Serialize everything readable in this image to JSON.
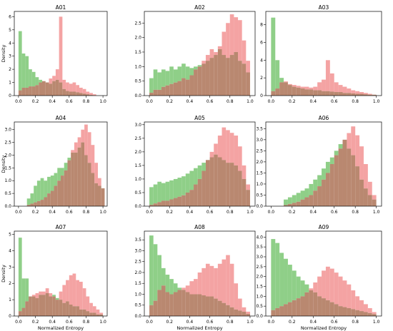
{
  "figure": {
    "x_axis_label": "Normalized Entropy",
    "y_axis_label": "Density",
    "colors": {
      "green": "#8fcf88",
      "red": "#f4a3a3",
      "overlap": "#b98870"
    }
  },
  "chart_data": [
    {
      "type": "bar",
      "title": "A01",
      "xlim": [
        -0.05,
        1.05
      ],
      "ylim": [
        0,
        6.4
      ],
      "x_ticks": [
        "0.0",
        "0.2",
        "0.4",
        "0.6",
        "0.8",
        "1.0"
      ],
      "y_ticks": [
        "0",
        "1",
        "2",
        "3",
        "4",
        "5",
        "6"
      ],
      "bins": [
        0.0,
        0.04,
        0.08,
        0.12,
        0.16,
        0.2,
        0.24,
        0.28,
        0.32,
        0.36,
        0.4,
        0.44,
        0.48,
        0.52,
        0.56,
        0.6,
        0.64,
        0.68,
        0.72,
        0.76,
        0.8,
        0.84,
        0.88,
        0.92,
        0.96
      ],
      "bin_width": 0.04,
      "series": [
        {
          "color": "green",
          "values": [
            4.9,
            3.2,
            3.0,
            2.0,
            1.8,
            1.4,
            1.2,
            1.1,
            1.0,
            0.9,
            1.1,
            1.2,
            1.0,
            0.5,
            0.35,
            0.3,
            0.3,
            0.25,
            0.2,
            0.15,
            0.1,
            0.05,
            0.02,
            0.0,
            0.0
          ]
        },
        {
          "color": "red",
          "values": [
            0.4,
            0.6,
            0.6,
            0.7,
            0.7,
            0.8,
            1.0,
            1.1,
            1.0,
            1.3,
            1.5,
            2.0,
            6.0,
            1.2,
            1.0,
            0.9,
            1.0,
            0.8,
            0.6,
            0.5,
            0.3,
            0.2,
            0.1,
            0.0,
            0.0
          ]
        }
      ]
    },
    {
      "type": "bar",
      "title": "A02",
      "xlim": [
        -0.05,
        1.05
      ],
      "ylim": [
        0,
        2.9
      ],
      "x_ticks": [
        "0.0",
        "0.2",
        "0.4",
        "0.6",
        "0.8",
        "1.0"
      ],
      "y_ticks": [
        "0.0",
        "0.5",
        "1.0",
        "1.5",
        "2.0",
        "2.5"
      ],
      "bins": [
        0.0,
        0.04,
        0.08,
        0.12,
        0.16,
        0.2,
        0.24,
        0.28,
        0.32,
        0.36,
        0.4,
        0.44,
        0.48,
        0.52,
        0.56,
        0.6,
        0.64,
        0.68,
        0.72,
        0.76,
        0.8,
        0.84,
        0.88,
        0.92,
        0.96
      ],
      "bin_width": 0.04,
      "series": [
        {
          "color": "green",
          "values": [
            0.6,
            0.9,
            0.8,
            0.9,
            0.85,
            1.0,
            0.9,
            1.0,
            1.1,
            1.0,
            0.95,
            1.0,
            1.05,
            1.1,
            1.2,
            1.3,
            1.4,
            1.6,
            1.4,
            1.3,
            1.4,
            1.5,
            1.2,
            1.1,
            0.8
          ]
        },
        {
          "color": "red",
          "values": [
            0.1,
            0.2,
            0.2,
            0.3,
            0.35,
            0.4,
            0.45,
            0.5,
            0.6,
            0.55,
            0.7,
            0.9,
            1.0,
            1.2,
            1.4,
            1.6,
            1.5,
            1.7,
            2.2,
            2.5,
            2.8,
            2.7,
            2.6,
            1.9,
            1.2
          ]
        }
      ]
    },
    {
      "type": "bar",
      "title": "A03",
      "xlim": [
        -0.05,
        1.05
      ],
      "ylim": [
        0,
        9.5
      ],
      "x_ticks": [
        "0.0",
        "0.2",
        "0.4",
        "0.6",
        "0.8",
        "1.0"
      ],
      "y_ticks": [
        "0",
        "2",
        "4",
        "6",
        "8"
      ],
      "bins": [
        0.0,
        0.04,
        0.08,
        0.12,
        0.16,
        0.2,
        0.24,
        0.28,
        0.32,
        0.36,
        0.4,
        0.44,
        0.48,
        0.52,
        0.56,
        0.6,
        0.64,
        0.68,
        0.72,
        0.76,
        0.8,
        0.84,
        0.88,
        0.92,
        0.96
      ],
      "bin_width": 0.04,
      "series": [
        {
          "color": "green",
          "values": [
            8.8,
            4.0,
            2.0,
            1.5,
            1.2,
            1.0,
            0.9,
            0.8,
            0.7,
            0.7,
            0.6,
            0.6,
            0.5,
            0.5,
            0.45,
            0.4,
            0.4,
            0.3,
            0.3,
            0.25,
            0.2,
            0.2,
            0.15,
            0.1,
            0.1
          ]
        },
        {
          "color": "red",
          "values": [
            0.5,
            0.8,
            1.5,
            1.6,
            1.3,
            1.2,
            1.1,
            1.0,
            1.0,
            0.9,
            1.0,
            1.5,
            1.8,
            4.0,
            2.5,
            1.5,
            1.2,
            1.0,
            0.8,
            0.6,
            0.5,
            0.4,
            0.3,
            0.2,
            0.1
          ]
        }
      ]
    },
    {
      "type": "bar",
      "title": "A04",
      "xlim": [
        -0.05,
        1.05
      ],
      "ylim": [
        0,
        3.3
      ],
      "x_ticks": [
        "0.0",
        "0.2",
        "0.4",
        "0.6",
        "0.8",
        "1.0"
      ],
      "y_ticks": [
        "0.0",
        "0.5",
        "1.0",
        "1.5",
        "2.0",
        "2.5",
        "3.0"
      ],
      "bins": [
        0.1,
        0.14,
        0.18,
        0.22,
        0.26,
        0.3,
        0.34,
        0.38,
        0.42,
        0.46,
        0.5,
        0.54,
        0.58,
        0.62,
        0.66,
        0.7,
        0.74,
        0.78,
        0.82,
        0.86,
        0.9,
        0.94,
        0.98
      ],
      "bin_width": 0.04,
      "series": [
        {
          "color": "green",
          "values": [
            0.3,
            0.5,
            0.8,
            1.0,
            1.1,
            1.0,
            1.15,
            1.2,
            1.3,
            1.5,
            1.5,
            1.7,
            1.9,
            2.1,
            2.1,
            2.3,
            2.5,
            2.0,
            1.7,
            1.3,
            0.9,
            0.8,
            0.7
          ]
        },
        {
          "color": "red",
          "values": [
            0.05,
            0.1,
            0.15,
            0.2,
            0.25,
            0.35,
            0.5,
            0.6,
            0.8,
            1.0,
            1.2,
            1.4,
            1.8,
            2.2,
            2.5,
            2.7,
            3.0,
            3.2,
            2.9,
            2.4,
            1.7,
            1.1,
            0.7
          ]
        }
      ]
    },
    {
      "type": "bar",
      "title": "A05",
      "xlim": [
        -0.05,
        1.05
      ],
      "ylim": [
        0,
        3.1
      ],
      "x_ticks": [
        "0.0",
        "0.2",
        "0.4",
        "0.6",
        "0.8",
        "1.0"
      ],
      "y_ticks": [
        "0.0",
        "0.5",
        "1.0",
        "1.5",
        "2.0",
        "2.5",
        "3.0"
      ],
      "bins": [
        0.0,
        0.04,
        0.08,
        0.12,
        0.16,
        0.2,
        0.24,
        0.28,
        0.32,
        0.36,
        0.4,
        0.44,
        0.48,
        0.52,
        0.56,
        0.6,
        0.64,
        0.68,
        0.72,
        0.76,
        0.8,
        0.84,
        0.88,
        0.92,
        0.96
      ],
      "bin_width": 0.04,
      "series": [
        {
          "color": "green",
          "values": [
            0.7,
            0.8,
            0.9,
            0.85,
            0.9,
            0.95,
            1.0,
            1.05,
            1.1,
            1.2,
            1.3,
            1.4,
            1.5,
            1.6,
            1.7,
            1.8,
            1.9,
            1.8,
            1.7,
            1.6,
            1.6,
            1.5,
            1.3,
            1.0,
            0.6
          ]
        },
        {
          "color": "red",
          "values": [
            0.05,
            0.1,
            0.15,
            0.2,
            0.2,
            0.25,
            0.3,
            0.35,
            0.4,
            0.5,
            0.6,
            0.8,
            1.0,
            1.3,
            1.7,
            2.0,
            2.3,
            2.6,
            2.9,
            2.8,
            2.7,
            2.6,
            2.2,
            1.5,
            0.8
          ]
        }
      ]
    },
    {
      "type": "bar",
      "title": "A06",
      "xlim": [
        -0.05,
        1.05
      ],
      "ylim": [
        0,
        3.8
      ],
      "x_ticks": [
        "0.0",
        "0.2",
        "0.4",
        "0.6",
        "0.8",
        "1.0"
      ],
      "y_ticks": [
        "0.0",
        "0.5",
        "1.0",
        "1.5",
        "2.0",
        "2.5",
        "3.0",
        "3.5"
      ],
      "bins": [
        0.12,
        0.16,
        0.2,
        0.24,
        0.28,
        0.32,
        0.36,
        0.4,
        0.44,
        0.48,
        0.52,
        0.56,
        0.6,
        0.64,
        0.68,
        0.72,
        0.76,
        0.8,
        0.84,
        0.88,
        0.92,
        0.96
      ],
      "bin_width": 0.04,
      "series": [
        {
          "color": "green",
          "values": [
            0.3,
            0.4,
            0.5,
            0.6,
            0.7,
            0.8,
            1.0,
            1.2,
            1.4,
            1.7,
            2.0,
            2.2,
            2.5,
            2.8,
            3.0,
            2.6,
            2.3,
            1.8,
            1.2,
            0.8,
            0.5,
            0.3
          ]
        },
        {
          "color": "red",
          "values": [
            0.05,
            0.1,
            0.15,
            0.2,
            0.3,
            0.4,
            0.5,
            0.7,
            0.9,
            1.2,
            1.5,
            1.9,
            2.3,
            2.6,
            3.0,
            3.3,
            3.6,
            3.2,
            2.7,
            1.9,
            1.1,
            0.5
          ]
        }
      ]
    },
    {
      "type": "bar",
      "title": "A07",
      "xlim": [
        -0.05,
        1.05
      ],
      "ylim": [
        0,
        5.2
      ],
      "x_ticks": [
        "0.0",
        "0.2",
        "0.4",
        "0.6",
        "0.8",
        "1.0"
      ],
      "y_ticks": [
        "0",
        "1",
        "2",
        "3",
        "4",
        "5"
      ],
      "bins": [
        0.0,
        0.04,
        0.08,
        0.12,
        0.16,
        0.2,
        0.24,
        0.28,
        0.32,
        0.36,
        0.4,
        0.44,
        0.48,
        0.52,
        0.56,
        0.6,
        0.64,
        0.68,
        0.72,
        0.76,
        0.8,
        0.84,
        0.88,
        0.92,
        0.96
      ],
      "bin_width": 0.04,
      "series": [
        {
          "color": "green",
          "values": [
            4.8,
            2.3,
            2.3,
            1.2,
            1.2,
            1.1,
            1.3,
            1.3,
            1.4,
            1.2,
            1.3,
            1.1,
            1.0,
            0.8,
            0.9,
            0.7,
            0.6,
            0.6,
            0.4,
            0.4,
            0.3,
            0.2,
            0.2,
            0.1,
            0.1
          ]
        },
        {
          "color": "red",
          "values": [
            0.3,
            0.5,
            0.9,
            1.2,
            1.3,
            1.4,
            1.5,
            1.5,
            1.7,
            1.4,
            1.2,
            1.0,
            1.5,
            1.9,
            2.2,
            2.5,
            2.6,
            2.2,
            2.1,
            1.7,
            1.2,
            0.8,
            0.6,
            0.4,
            0.2
          ]
        }
      ]
    },
    {
      "type": "bar",
      "title": "A08",
      "xlim": [
        -0.05,
        1.05
      ],
      "ylim": [
        0,
        3.9
      ],
      "x_ticks": [
        "0.0",
        "0.2",
        "0.4",
        "0.6",
        "0.8",
        "1.0"
      ],
      "y_ticks": [
        "0.0",
        "0.5",
        "1.0",
        "1.5",
        "2.0",
        "2.5",
        "3.0",
        "3.5"
      ],
      "bins": [
        0.0,
        0.04,
        0.08,
        0.12,
        0.16,
        0.2,
        0.24,
        0.28,
        0.32,
        0.36,
        0.4,
        0.44,
        0.48,
        0.52,
        0.56,
        0.6,
        0.64,
        0.68,
        0.72,
        0.76,
        0.8,
        0.84,
        0.88,
        0.92,
        0.96
      ],
      "bin_width": 0.04,
      "series": [
        {
          "color": "green",
          "values": [
            3.7,
            3.3,
            2.8,
            2.2,
            1.9,
            1.7,
            1.5,
            1.3,
            1.2,
            1.1,
            1.0,
            1.0,
            1.0,
            0.95,
            0.9,
            0.9,
            0.8,
            0.7,
            0.6,
            0.5,
            0.4,
            0.3,
            0.25,
            0.2,
            0.1
          ]
        },
        {
          "color": "red",
          "values": [
            0.5,
            0.7,
            1.2,
            1.4,
            1.1,
            1.0,
            1.1,
            1.2,
            1.3,
            1.4,
            1.6,
            1.7,
            2.0,
            2.2,
            2.4,
            2.3,
            2.2,
            2.4,
            2.6,
            2.8,
            2.4,
            1.5,
            0.8,
            0.4,
            0.2
          ]
        }
      ]
    },
    {
      "type": "bar",
      "title": "A09",
      "xlim": [
        -0.05,
        1.05
      ],
      "ylim": [
        0,
        4.3
      ],
      "x_ticks": [
        "0.0",
        "0.2",
        "0.4",
        "0.6",
        "0.8",
        "1.0"
      ],
      "y_ticks": [
        "0.0",
        "0.5",
        "1.0",
        "1.5",
        "2.0",
        "2.5",
        "3.0",
        "3.5",
        "4.0"
      ],
      "bins": [
        0.0,
        0.04,
        0.08,
        0.12,
        0.16,
        0.2,
        0.24,
        0.28,
        0.32,
        0.36,
        0.4,
        0.44,
        0.48,
        0.52,
        0.56,
        0.6,
        0.64,
        0.68,
        0.72,
        0.76,
        0.8,
        0.84,
        0.88,
        0.92,
        0.96
      ],
      "bin_width": 0.04,
      "series": [
        {
          "color": "green",
          "values": [
            3.9,
            3.7,
            3.2,
            2.9,
            2.6,
            2.3,
            2.0,
            1.8,
            1.6,
            1.3,
            1.2,
            1.0,
            0.9,
            0.8,
            0.7,
            0.6,
            0.5,
            0.45,
            0.4,
            0.35,
            0.3,
            0.25,
            0.2,
            0.15,
            0.1
          ]
        },
        {
          "color": "red",
          "values": [
            0.3,
            0.4,
            0.5,
            0.6,
            0.7,
            0.8,
            0.9,
            1.0,
            1.2,
            1.4,
            1.7,
            2.0,
            2.3,
            2.5,
            2.4,
            2.2,
            2.0,
            1.8,
            1.6,
            1.3,
            1.0,
            0.8,
            0.6,
            0.4,
            0.2
          ]
        }
      ]
    }
  ]
}
